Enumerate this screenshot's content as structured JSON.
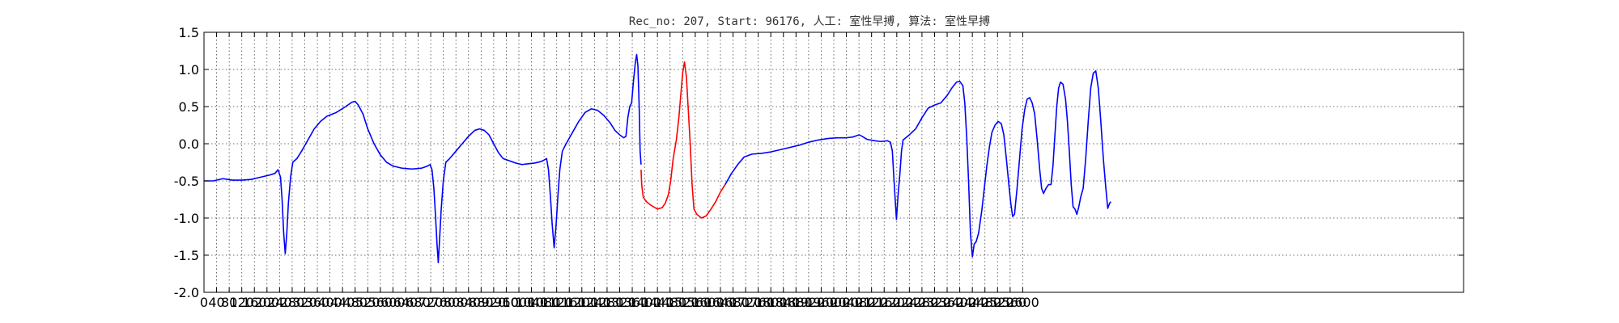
{
  "chart_data": {
    "type": "line",
    "title": "Rec_no: 207, Start: 96176, 人工: 室性早搏, 算法: 室性早搏",
    "xlabel": "",
    "ylabel": "",
    "xlim": [
      0,
      4000
    ],
    "ylim": [
      -2.0,
      1.5
    ],
    "grid": true,
    "colors": {
      "normal": "#0000ff",
      "highlight": "#ff0000"
    },
    "yticks": [
      {
        "v": 1.5,
        "label": "1.5"
      },
      {
        "v": 1.0,
        "label": "1.0"
      },
      {
        "v": 0.5,
        "label": "0.5"
      },
      {
        "v": 0.0,
        "label": "0.0"
      },
      {
        "v": -0.5,
        "label": "-0.5"
      },
      {
        "v": -1.0,
        "label": "-1.0"
      },
      {
        "v": -1.5,
        "label": "-1.5"
      },
      {
        "v": -2.0,
        "label": "-2.0"
      }
    ],
    "xticks": [
      {
        "v": 0,
        "label": "0"
      },
      {
        "v": 40,
        "label": "40"
      },
      {
        "v": 80,
        "label": "80"
      },
      {
        "v": 120,
        "label": "120"
      },
      {
        "v": 160,
        "label": "160"
      },
      {
        "v": 200,
        "label": "200"
      },
      {
        "v": 240,
        "label": "240"
      },
      {
        "v": 280,
        "label": "280"
      },
      {
        "v": 320,
        "label": "320"
      },
      {
        "v": 360,
        "label": "360"
      },
      {
        "v": 400,
        "label": "400"
      },
      {
        "v": 440,
        "label": "440"
      },
      {
        "v": 480,
        "label": "480"
      },
      {
        "v": 520,
        "label": "520"
      },
      {
        "v": 560,
        "label": "560"
      },
      {
        "v": 600,
        "label": "600"
      },
      {
        "v": 640,
        "label": "640"
      },
      {
        "v": 680,
        "label": "680"
      },
      {
        "v": 720,
        "label": "720"
      },
      {
        "v": 760,
        "label": "760"
      },
      {
        "v": 800,
        "label": "800"
      },
      {
        "v": 840,
        "label": "840"
      },
      {
        "v": 880,
        "label": "880"
      },
      {
        "v": 920,
        "label": "920"
      },
      {
        "v": 960,
        "label": "960"
      },
      {
        "v": 1000,
        "label": "1000"
      },
      {
        "v": 1040,
        "label": "1040"
      },
      {
        "v": 1080,
        "label": "1080"
      },
      {
        "v": 1120,
        "label": "1120"
      },
      {
        "v": 1160,
        "label": "1160"
      },
      {
        "v": 1200,
        "label": "1200"
      },
      {
        "v": 1240,
        "label": "1240"
      },
      {
        "v": 1280,
        "label": "1280"
      },
      {
        "v": 1320,
        "label": "1320"
      },
      {
        "v": 1360,
        "label": "1360"
      },
      {
        "v": 1400,
        "label": "1400"
      },
      {
        "v": 1440,
        "label": "1440"
      },
      {
        "v": 1480,
        "label": "1480"
      },
      {
        "v": 1520,
        "label": "1520"
      },
      {
        "v": 1560,
        "label": "1560"
      },
      {
        "v": 1600,
        "label": "1600"
      },
      {
        "v": 1640,
        "label": "1640"
      },
      {
        "v": 1680,
        "label": "1680"
      },
      {
        "v": 1720,
        "label": "1720"
      },
      {
        "v": 1760,
        "label": "1760"
      },
      {
        "v": 1800,
        "label": "1800"
      },
      {
        "v": 1840,
        "label": "1840"
      },
      {
        "v": 1880,
        "label": "1880"
      },
      {
        "v": 1920,
        "label": "1920"
      },
      {
        "v": 1960,
        "label": "1960"
      },
      {
        "v": 2000,
        "label": "2000"
      },
      {
        "v": 2040,
        "label": "2040"
      },
      {
        "v": 2080,
        "label": "2080"
      },
      {
        "v": 2120,
        "label": "2120"
      },
      {
        "v": 2160,
        "label": "2160"
      },
      {
        "v": 2200,
        "label": "2200"
      },
      {
        "v": 2240,
        "label": "2240"
      },
      {
        "v": 2280,
        "label": "2280"
      },
      {
        "v": 2320,
        "label": "2320"
      },
      {
        "v": 2360,
        "label": "2360"
      },
      {
        "v": 2400,
        "label": "2400"
      },
      {
        "v": 2440,
        "label": "2440"
      },
      {
        "v": 2480,
        "label": "2480"
      },
      {
        "v": 2520,
        "label": "2520"
      },
      {
        "v": 2560,
        "label": "2560"
      },
      {
        "v": 2600,
        "label": "2600"
      }
    ],
    "series": [
      {
        "color": "#0000ff",
        "points": [
          [
            0,
            -0.5
          ],
          [
            30,
            -0.5
          ],
          [
            60,
            -0.47
          ],
          [
            90,
            -0.49
          ],
          [
            120,
            -0.49
          ],
          [
            150,
            -0.48
          ],
          [
            180,
            -0.45
          ],
          [
            210,
            -0.42
          ],
          [
            225,
            -0.4
          ],
          [
            235,
            -0.35
          ],
          [
            243,
            -0.45
          ],
          [
            248,
            -0.75
          ],
          [
            253,
            -1.2
          ],
          [
            258,
            -1.48
          ],
          [
            263,
            -1.2
          ],
          [
            268,
            -0.8
          ],
          [
            275,
            -0.45
          ],
          [
            282,
            -0.25
          ],
          [
            295,
            -0.2
          ],
          [
            310,
            -0.1
          ],
          [
            330,
            0.05
          ],
          [
            350,
            0.2
          ],
          [
            370,
            0.3
          ],
          [
            390,
            0.37
          ],
          [
            420,
            0.42
          ],
          [
            450,
            0.5
          ],
          [
            470,
            0.56
          ],
          [
            480,
            0.57
          ],
          [
            490,
            0.52
          ],
          [
            505,
            0.4
          ],
          [
            520,
            0.2
          ],
          [
            540,
            0.0
          ],
          [
            560,
            -0.15
          ],
          [
            580,
            -0.25
          ],
          [
            600,
            -0.3
          ],
          [
            630,
            -0.33
          ],
          [
            660,
            -0.34
          ],
          [
            690,
            -0.33
          ],
          [
            710,
            -0.3
          ],
          [
            718,
            -0.28
          ],
          [
            724,
            -0.35
          ],
          [
            730,
            -0.6
          ],
          [
            735,
            -0.95
          ],
          [
            740,
            -1.35
          ],
          [
            744,
            -1.6
          ],
          [
            748,
            -1.3
          ],
          [
            753,
            -0.9
          ],
          [
            760,
            -0.5
          ],
          [
            768,
            -0.25
          ],
          [
            780,
            -0.2
          ],
          [
            800,
            -0.1
          ],
          [
            820,
            0.0
          ],
          [
            840,
            0.1
          ],
          [
            860,
            0.18
          ],
          [
            875,
            0.2
          ],
          [
            890,
            0.18
          ],
          [
            905,
            0.12
          ],
          [
            920,
            0.0
          ],
          [
            935,
            -0.12
          ],
          [
            950,
            -0.2
          ],
          [
            970,
            -0.23
          ],
          [
            990,
            -0.26
          ],
          [
            1010,
            -0.28
          ],
          [
            1030,
            -0.27
          ],
          [
            1050,
            -0.26
          ],
          [
            1070,
            -0.24
          ],
          [
            1080,
            -0.22
          ],
          [
            1088,
            -0.2
          ],
          [
            1094,
            -0.35
          ],
          [
            1100,
            -0.7
          ],
          [
            1106,
            -1.1
          ],
          [
            1112,
            -1.4
          ],
          [
            1118,
            -1.1
          ],
          [
            1124,
            -0.7
          ],
          [
            1130,
            -0.35
          ],
          [
            1138,
            -0.1
          ],
          [
            1150,
            0.0
          ],
          [
            1170,
            0.15
          ],
          [
            1190,
            0.3
          ],
          [
            1210,
            0.42
          ],
          [
            1230,
            0.47
          ],
          [
            1250,
            0.45
          ],
          [
            1270,
            0.38
          ],
          [
            1290,
            0.28
          ],
          [
            1305,
            0.18
          ],
          [
            1320,
            0.12
          ],
          [
            1333,
            0.08
          ],
          [
            1340,
            0.1
          ],
          [
            1346,
            0.35
          ],
          [
            1352,
            0.5
          ],
          [
            1358,
            0.55
          ],
          [
            1364,
            0.85
          ],
          [
            1370,
            1.1
          ],
          [
            1374,
            1.2
          ],
          [
            1378,
            1.05
          ],
          [
            1382,
            0.5
          ],
          [
            1385,
            -0.1
          ],
          [
            1388,
            -0.28
          ]
        ]
      },
      {
        "color": "#ff0000",
        "points": [
          [
            1388,
            -0.35
          ],
          [
            1390,
            -0.55
          ],
          [
            1395,
            -0.72
          ],
          [
            1405,
            -0.78
          ],
          [
            1420,
            -0.83
          ],
          [
            1440,
            -0.88
          ],
          [
            1455,
            -0.86
          ],
          [
            1465,
            -0.8
          ],
          [
            1475,
            -0.68
          ],
          [
            1482,
            -0.5
          ],
          [
            1490,
            -0.2
          ],
          [
            1500,
            0.05
          ],
          [
            1508,
            0.35
          ],
          [
            1515,
            0.7
          ],
          [
            1520,
            0.95
          ],
          [
            1526,
            1.1
          ],
          [
            1532,
            0.9
          ],
          [
            1538,
            0.45
          ],
          [
            1544,
            0.0
          ],
          [
            1550,
            -0.55
          ],
          [
            1556,
            -0.88
          ],
          [
            1565,
            -0.95
          ],
          [
            1580,
            -1.0
          ],
          [
            1595,
            -0.97
          ],
          [
            1610,
            -0.88
          ],
          [
            1625,
            -0.78
          ],
          [
            1640,
            -0.65
          ],
          [
            1655,
            -0.55
          ]
        ]
      },
      {
        "color": "#0000ff",
        "points": [
          [
            1655,
            -0.55
          ],
          [
            1675,
            -0.4
          ],
          [
            1695,
            -0.28
          ],
          [
            1715,
            -0.18
          ],
          [
            1740,
            -0.14
          ],
          [
            1770,
            -0.13
          ],
          [
            1800,
            -0.11
          ],
          [
            1830,
            -0.08
          ],
          [
            1860,
            -0.05
          ],
          [
            1890,
            -0.02
          ],
          [
            1920,
            0.02
          ],
          [
            1950,
            0.05
          ],
          [
            1980,
            0.07
          ],
          [
            2010,
            0.08
          ],
          [
            2040,
            0.08
          ],
          [
            2060,
            0.09
          ],
          [
            2080,
            0.12
          ],
          [
            2090,
            0.1
          ],
          [
            2105,
            0.06
          ],
          [
            2130,
            0.04
          ],
          [
            2150,
            0.03
          ],
          [
            2170,
            0.04
          ],
          [
            2180,
            0.02
          ],
          [
            2186,
            -0.1
          ],
          [
            2190,
            -0.4
          ],
          [
            2195,
            -0.75
          ],
          [
            2199,
            -1.02
          ],
          [
            2204,
            -0.7
          ],
          [
            2210,
            -0.4
          ],
          [
            2215,
            -0.1
          ],
          [
            2220,
            0.05
          ],
          [
            2240,
            0.12
          ],
          [
            2260,
            0.2
          ],
          [
            2280,
            0.35
          ],
          [
            2300,
            0.48
          ],
          [
            2320,
            0.52
          ],
          [
            2340,
            0.55
          ],
          [
            2360,
            0.65
          ],
          [
            2375,
            0.75
          ],
          [
            2390,
            0.83
          ],
          [
            2400,
            0.84
          ],
          [
            2410,
            0.78
          ],
          [
            2416,
            0.55
          ],
          [
            2422,
            0.1
          ],
          [
            2428,
            -0.5
          ],
          [
            2434,
            -1.2
          ],
          [
            2440,
            -1.52
          ],
          [
            2446,
            -1.35
          ],
          [
            2452,
            -1.32
          ],
          [
            2460,
            -1.2
          ],
          [
            2470,
            -0.9
          ],
          [
            2478,
            -0.6
          ],
          [
            2486,
            -0.3
          ],
          [
            2494,
            -0.05
          ],
          [
            2502,
            0.15
          ],
          [
            2512,
            0.25
          ],
          [
            2522,
            0.3
          ],
          [
            2532,
            0.27
          ],
          [
            2540,
            0.12
          ],
          [
            2548,
            -0.2
          ],
          [
            2556,
            -0.55
          ],
          [
            2562,
            -0.8
          ],
          [
            2568,
            -0.98
          ],
          [
            2574,
            -0.95
          ],
          [
            2582,
            -0.6
          ],
          [
            2590,
            -0.2
          ],
          [
            2598,
            0.2
          ],
          [
            2606,
            0.45
          ],
          [
            2614,
            0.6
          ],
          [
            2622,
            0.62
          ],
          [
            2630,
            0.55
          ],
          [
            2638,
            0.4
          ],
          [
            2646,
            0.05
          ],
          [
            2654,
            -0.35
          ],
          [
            2660,
            -0.6
          ],
          [
            2666,
            -0.67
          ],
          [
            2674,
            -0.6
          ],
          [
            2682,
            -0.55
          ],
          [
            2690,
            -0.55
          ],
          [
            2696,
            -0.3
          ],
          [
            2702,
            0.1
          ],
          [
            2708,
            0.5
          ],
          [
            2714,
            0.75
          ],
          [
            2720,
            0.83
          ],
          [
            2728,
            0.8
          ],
          [
            2736,
            0.6
          ],
          [
            2742,
            0.3
          ],
          [
            2748,
            -0.1
          ],
          [
            2754,
            -0.55
          ],
          [
            2760,
            -0.85
          ],
          [
            2766,
            -0.88
          ],
          [
            2772,
            -0.95
          ],
          [
            2778,
            -0.85
          ],
          [
            2784,
            -0.72
          ],
          [
            2792,
            -0.6
          ],
          [
            2800,
            -0.2
          ],
          [
            2808,
            0.3
          ],
          [
            2816,
            0.75
          ],
          [
            2824,
            0.95
          ],
          [
            2832,
            0.98
          ],
          [
            2840,
            0.75
          ],
          [
            2848,
            0.3
          ],
          [
            2856,
            -0.2
          ],
          [
            2864,
            -0.6
          ],
          [
            2870,
            -0.87
          ],
          [
            2876,
            -0.8
          ],
          [
            2880,
            -0.78
          ]
        ]
      }
    ]
  }
}
